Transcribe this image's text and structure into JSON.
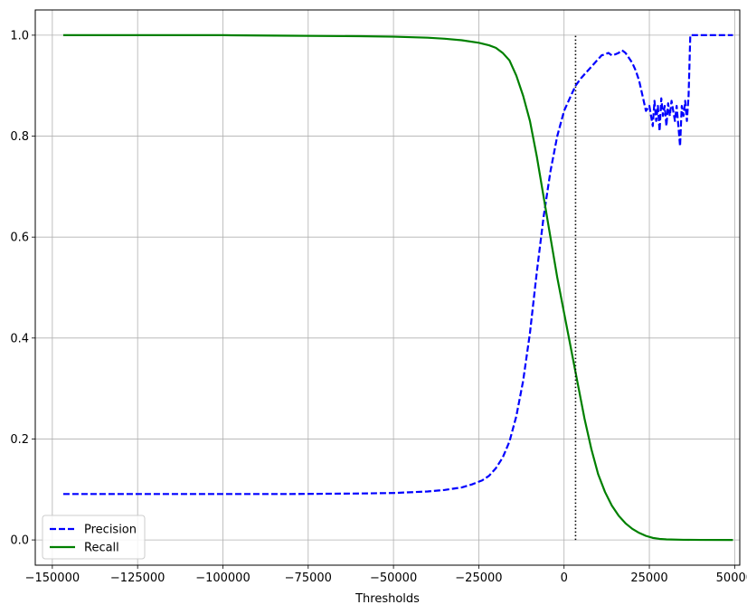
{
  "chart_data": {
    "type": "line",
    "title": "",
    "xlabel": "Thresholds",
    "ylabel": "",
    "xlim": [
      -155000,
      51500
    ],
    "ylim": [
      -0.05,
      1.05
    ],
    "xticks": [
      -150000,
      -125000,
      -100000,
      -75000,
      -50000,
      -25000,
      0,
      25000,
      50000
    ],
    "xtick_labels": [
      "−150000",
      "−125000",
      "−100000",
      "−75000",
      "−50000",
      "−25000",
      "0",
      "25000",
      "50000"
    ],
    "yticks": [
      0.0,
      0.2,
      0.4,
      0.6,
      0.8,
      1.0
    ],
    "ytick_labels": [
      "0.0",
      "0.2",
      "0.4",
      "0.6",
      "0.8",
      "1.0"
    ],
    "grid": true,
    "legend_position": "lower-left",
    "threshold_marker": {
      "x": 3370,
      "y_from": 0.0,
      "y_to": 1.0,
      "color": "#000000",
      "style": "dotted"
    },
    "series": [
      {
        "name": "Precision",
        "color": "#0000ff",
        "style": "dashed",
        "x": [
          -146800,
          -120000,
          -100000,
          -80000,
          -60000,
          -50000,
          -40000,
          -35000,
          -30000,
          -27000,
          -24000,
          -22000,
          -20000,
          -18000,
          -16000,
          -14000,
          -12000,
          -10000,
          -8000,
          -6000,
          -4000,
          -2000,
          0,
          2000,
          3370,
          5000,
          7000,
          9000,
          11000,
          12000,
          13000,
          14000,
          15000,
          16000,
          17000,
          18000,
          19000,
          20000,
          21000,
          22000,
          23000,
          24000,
          25000,
          26000,
          26500,
          27000,
          27500,
          28000,
          28500,
          29000,
          29500,
          30000,
          30500,
          31000,
          31500,
          32000,
          32500,
          33000,
          33500,
          34000,
          34500,
          35000,
          35500,
          36000,
          36500,
          37000,
          42000,
          48000,
          49500
        ],
        "values": [
          0.091,
          0.091,
          0.091,
          0.091,
          0.092,
          0.093,
          0.096,
          0.099,
          0.104,
          0.11,
          0.118,
          0.127,
          0.142,
          0.163,
          0.195,
          0.245,
          0.315,
          0.41,
          0.53,
          0.64,
          0.73,
          0.8,
          0.85,
          0.88,
          0.9,
          0.915,
          0.93,
          0.945,
          0.96,
          0.962,
          0.965,
          0.96,
          0.962,
          0.965,
          0.97,
          0.965,
          0.955,
          0.945,
          0.93,
          0.91,
          0.88,
          0.85,
          0.86,
          0.82,
          0.87,
          0.83,
          0.86,
          0.81,
          0.875,
          0.84,
          0.86,
          0.82,
          0.865,
          0.84,
          0.87,
          0.85,
          0.83,
          0.86,
          0.82,
          0.78,
          0.86,
          0.84,
          0.87,
          0.83,
          0.88,
          1.0,
          1.0,
          1.0,
          1.0
        ]
      },
      {
        "name": "Recall",
        "color": "#008000",
        "style": "solid",
        "x": [
          -146800,
          -100000,
          -80000,
          -60000,
          -50000,
          -40000,
          -35000,
          -30000,
          -25000,
          -22000,
          -20000,
          -18000,
          -16000,
          -14000,
          -12000,
          -10000,
          -8000,
          -6000,
          -4000,
          -2000,
          0,
          2000,
          4000,
          6000,
          8000,
          10000,
          12000,
          14000,
          16000,
          18000,
          20000,
          22000,
          24000,
          26000,
          28000,
          30000,
          35000,
          40000,
          49500
        ],
        "values": [
          1.0,
          1.0,
          0.999,
          0.998,
          0.997,
          0.995,
          0.993,
          0.99,
          0.985,
          0.98,
          0.975,
          0.965,
          0.95,
          0.92,
          0.88,
          0.83,
          0.76,
          0.68,
          0.6,
          0.52,
          0.45,
          0.38,
          0.31,
          0.24,
          0.18,
          0.13,
          0.095,
          0.068,
          0.048,
          0.033,
          0.022,
          0.014,
          0.008,
          0.004,
          0.002,
          0.001,
          0.0003,
          0.0001,
          0.0
        ]
      }
    ]
  }
}
